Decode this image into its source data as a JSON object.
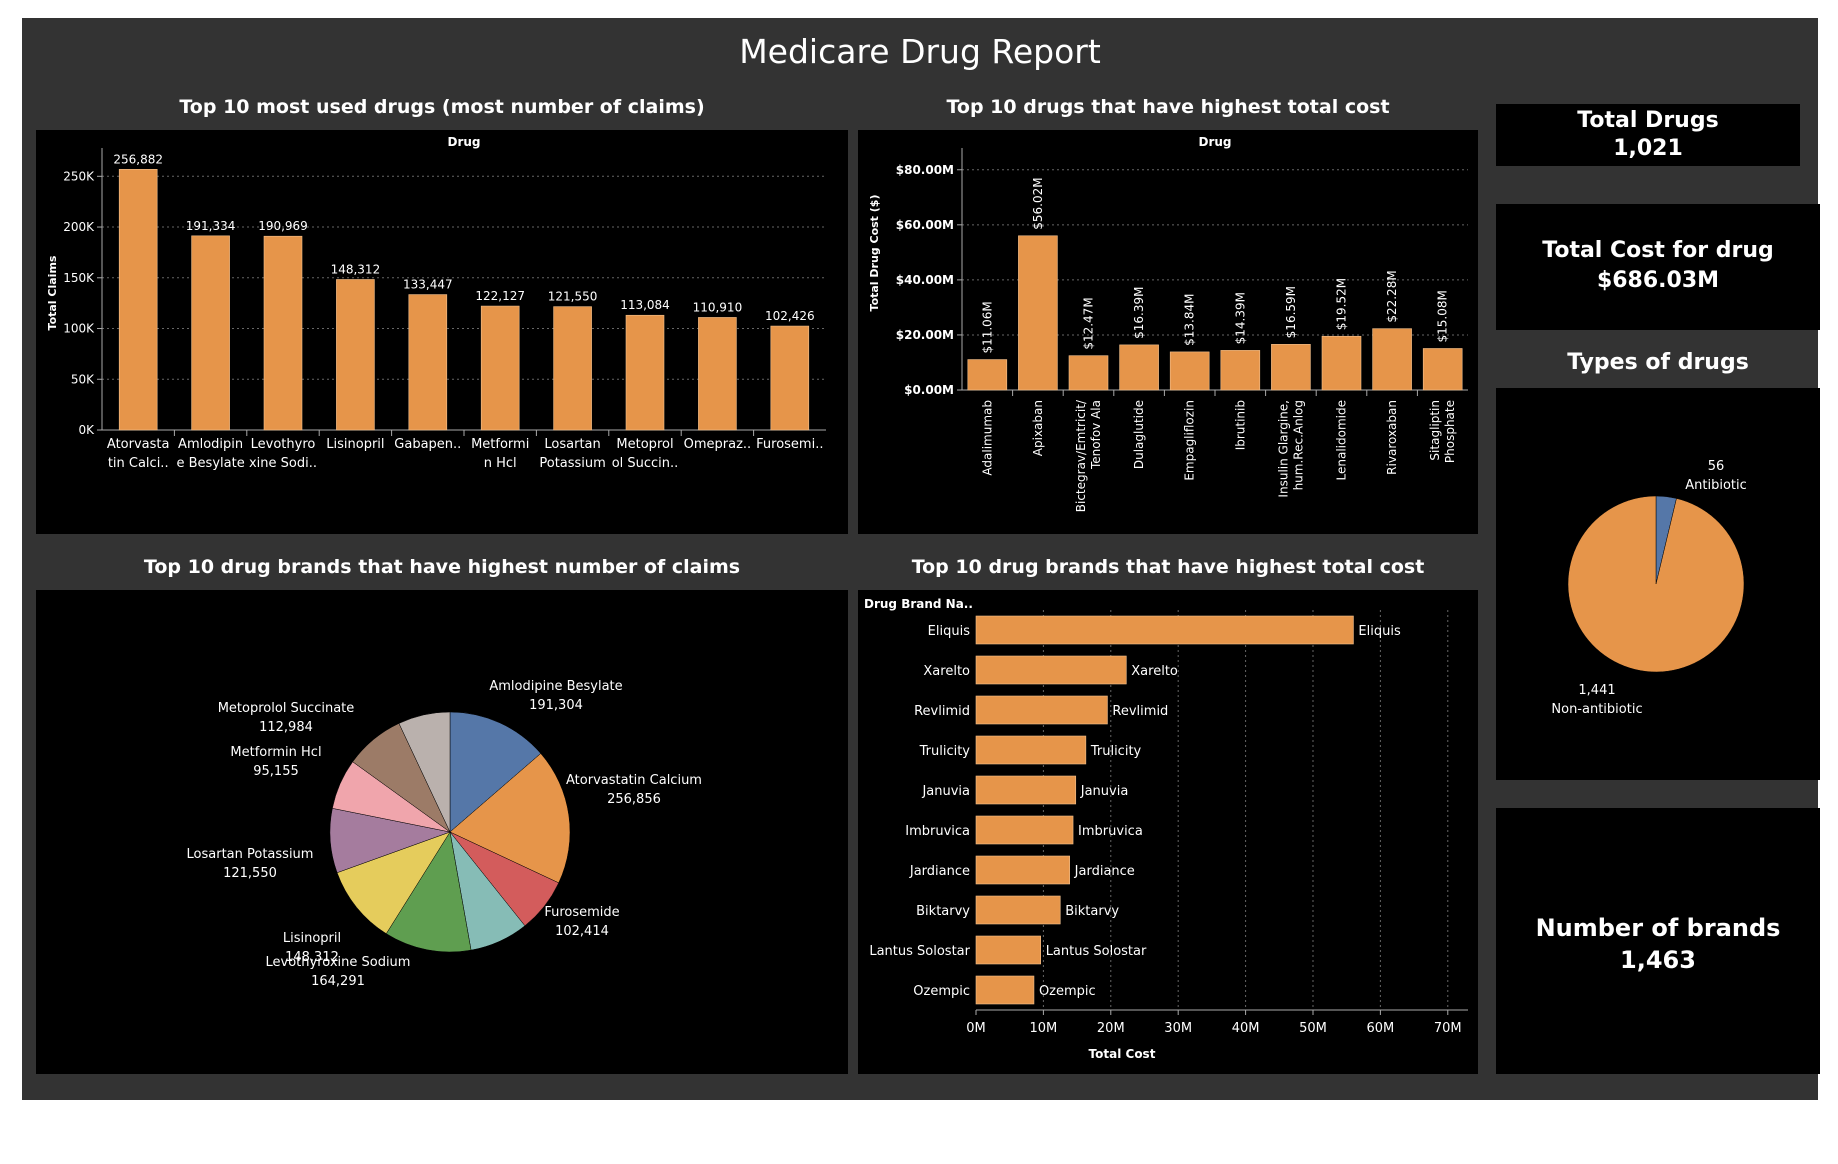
{
  "report_title": "Medicare Drug Report",
  "kpis": {
    "total_drugs": {
      "label": "Total Drugs",
      "value": "1,021"
    },
    "total_cost": {
      "label": "Total Cost for drug",
      "value": "$686.03M"
    },
    "brands": {
      "label": "Number of brands",
      "value": "1,463"
    }
  },
  "types_title": "Types of drugs",
  "colors": {
    "accent": "#E6954A",
    "bar_stroke": "#F2C08E",
    "antibiotic": "#5577A8",
    "background": "#333333",
    "panel": "#000000"
  },
  "chart_data": [
    {
      "id": "claims_by_drug",
      "type": "bar",
      "title": "Top 10 most used drugs (most number of claims)",
      "header": "Drug",
      "ylabel": "Total Claims",
      "ylim": [
        0,
        270000
      ],
      "yticks": [
        0,
        50000,
        100000,
        150000,
        200000,
        250000
      ],
      "ytick_labels": [
        "0K",
        "50K",
        "100K",
        "150K",
        "200K",
        "250K"
      ],
      "grid": true,
      "category_labels": [
        [
          "Atorvasta",
          "tin Calci.."
        ],
        [
          "Amlodipin",
          "e Besylate"
        ],
        [
          "Levothyro",
          "xine Sodi.."
        ],
        [
          "Lisinopril"
        ],
        [
          "Gabapen.."
        ],
        [
          "Metformi",
          "n Hcl"
        ],
        [
          "Losartan",
          "Potassium"
        ],
        [
          "Metoprol",
          "ol Succin.."
        ],
        [
          "Omepraz.."
        ],
        [
          "Furosemi.."
        ]
      ],
      "values": [
        256882,
        191334,
        190969,
        148312,
        133447,
        122127,
        121550,
        113084,
        110910,
        102426
      ],
      "value_labels": [
        "256,882",
        "191,334",
        "190,969",
        "148,312",
        "133,447",
        "122,127",
        "121,550",
        "113,084",
        "110,910",
        "102,426"
      ]
    },
    {
      "id": "cost_by_drug",
      "type": "bar",
      "title": "Top 10 drugs that have highest total cost",
      "header": "Drug",
      "ylabel": "Total Drug Cost ($)",
      "ylim": [
        0,
        85
      ],
      "yticks": [
        0,
        20,
        40,
        60,
        80
      ],
      "ytick_labels": [
        "$0.00M",
        "$20.00M",
        "$40.00M",
        "$60.00M",
        "$80.00M"
      ],
      "grid": true,
      "category_labels": [
        [
          "Adalimumab"
        ],
        [
          "Apixaban"
        ],
        [
          "Bictegrav/Emtricit/",
          "Tenofov Ala"
        ],
        [
          "Dulaglutide"
        ],
        [
          "Empagliflozin"
        ],
        [
          "Ibrutinib"
        ],
        [
          "Insulin Glargine,",
          "hum.Rec.Anlog"
        ],
        [
          "Lenalidomide"
        ],
        [
          "Rivaroxaban"
        ],
        [
          "Sitagliptin",
          "Phosphate"
        ]
      ],
      "values": [
        11.06,
        56.02,
        12.47,
        16.39,
        13.84,
        14.39,
        16.59,
        19.52,
        22.28,
        15.08
      ],
      "value_labels": [
        "$11.06M",
        "$56.02M",
        "$12.47M",
        "$16.39M",
        "$13.84M",
        "$14.39M",
        "$16.59M",
        "$19.52M",
        "$22.28M",
        "$15.08M"
      ]
    },
    {
      "id": "brand_claims",
      "type": "pie",
      "title": "Top 10 drug brands that have highest number of claims",
      "labels": [
        "Amlodipine Besylate",
        "Atorvastatin Calcium",
        "Furosemide",
        "",
        "Levothyroxine Sodium",
        "Lisinopril",
        "Losartan Potassium",
        "Metformin Hcl",
        "Metoprolol Succinate",
        ""
      ],
      "values": [
        191304,
        256856,
        102414,
        111000,
        164291,
        148312,
        121550,
        95155,
        112984,
        98000
      ],
      "value_labels": [
        "191,304",
        "256,856",
        "102,414",
        "",
        "164,291",
        "148,312",
        "121,550",
        "95,155",
        "112,984",
        ""
      ],
      "colors": [
        "#5577A8",
        "#E6954A",
        "#D35C5C",
        "#86BCB6",
        "#5F9E50",
        "#E5CC5C",
        "#A57C9E",
        "#F0A5AC",
        "#9C7B67",
        "#BAB1AD"
      ]
    },
    {
      "id": "brand_cost",
      "type": "bar",
      "orientation": "horizontal",
      "title": "Top 10 drug brands that have highest total cost",
      "header": "Drug Brand Na..",
      "xlabel": "Total Cost",
      "xlim": [
        0,
        73
      ],
      "xticks": [
        0,
        10,
        20,
        30,
        40,
        50,
        60,
        70
      ],
      "xtick_labels": [
        "0M",
        "10M",
        "20M",
        "30M",
        "40M",
        "50M",
        "60M",
        "70M"
      ],
      "grid": true,
      "categories": [
        "Eliquis",
        "Xarelto",
        "Revlimid",
        "Trulicity",
        "Januvia",
        "Imbruvica",
        "Jardiance",
        "Biktarvy",
        "Lantus Solostar",
        "Ozempic"
      ],
      "values": [
        56.0,
        22.3,
        19.5,
        16.3,
        14.8,
        14.4,
        13.9,
        12.5,
        9.6,
        8.6
      ]
    },
    {
      "id": "drug_types",
      "type": "pie",
      "labels": [
        "Antibiotic",
        "Non-antibiotic"
      ],
      "values": [
        56,
        1441
      ],
      "value_labels": [
        "56",
        "1,441"
      ],
      "colors": [
        "#5577A8",
        "#E6954A"
      ]
    }
  ]
}
